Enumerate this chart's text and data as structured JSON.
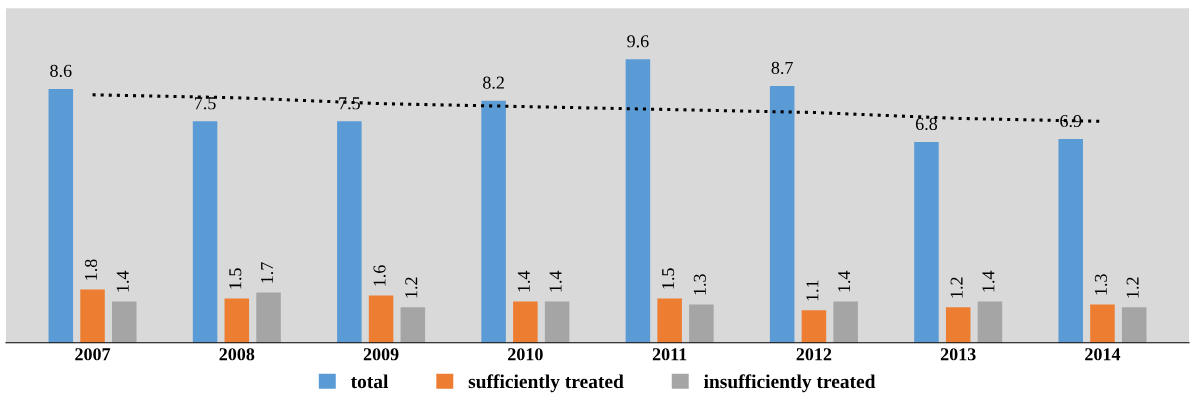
{
  "chart_data": {
    "type": "bar",
    "categories": [
      "2007",
      "2008",
      "2009",
      "2010",
      "2011",
      "2012",
      "2013",
      "2014"
    ],
    "series": [
      {
        "name": "total",
        "color": "#5b9bd5",
        "values": [
          8.6,
          7.5,
          7.5,
          8.2,
          9.6,
          8.7,
          6.8,
          6.9
        ],
        "value_labels": [
          "8.6",
          "7.5",
          "7.5",
          "8.2",
          "9.6",
          "8.7",
          "6.8",
          "6.9"
        ]
      },
      {
        "name": "sufficiently treated",
        "color": "#ed7d31",
        "values": [
          1.8,
          1.5,
          1.6,
          1.4,
          1.5,
          1.1,
          1.2,
          1.3
        ],
        "value_labels": [
          "1.8",
          "1.5",
          "1.6",
          "1.4",
          "1.5",
          "1.1",
          "1.2",
          "1.3"
        ]
      },
      {
        "name": "insufficiently treated",
        "color": "#a5a5a5",
        "values": [
          1.4,
          1.7,
          1.2,
          1.4,
          1.3,
          1.4,
          1.4,
          1.2
        ],
        "value_labels": [
          "1.4",
          "1.7",
          "1.2",
          "1.4",
          "1.3",
          "1.4",
          "1.4",
          "1.2"
        ]
      },
      {
        "type": "line",
        "line_style": "dotted",
        "color": "#000000",
        "values": [
          8.4,
          8.3,
          8.1,
          8.0,
          7.9,
          7.8,
          7.6,
          7.5
        ]
      }
    ],
    "legend": "bottom",
    "grid": false
  }
}
